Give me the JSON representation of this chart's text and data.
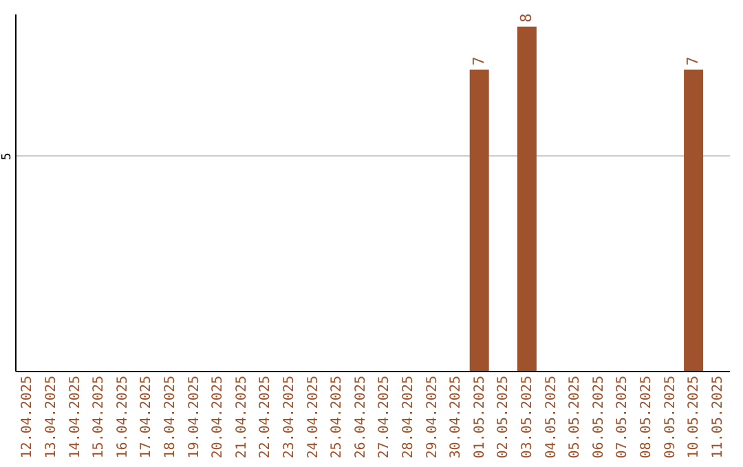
{
  "chart_data": {
    "type": "bar",
    "categories": [
      "12.04.2025",
      "13.04.2025",
      "14.04.2025",
      "15.04.2025",
      "16.04.2025",
      "17.04.2025",
      "18.04.2025",
      "19.04.2025",
      "20.04.2025",
      "21.04.2025",
      "22.04.2025",
      "23.04.2025",
      "24.04.2025",
      "25.04.2025",
      "26.04.2025",
      "27.04.2025",
      "28.04.2025",
      "29.04.2025",
      "30.04.2025",
      "01.05.2025",
      "02.05.2025",
      "03.05.2025",
      "04.05.2025",
      "05.05.2025",
      "06.05.2025",
      "07.05.2025",
      "08.05.2025",
      "09.05.2025",
      "10.05.2025",
      "11.05.2025"
    ],
    "values": [
      null,
      null,
      null,
      null,
      null,
      null,
      null,
      null,
      null,
      null,
      null,
      null,
      null,
      null,
      null,
      null,
      null,
      null,
      null,
      7,
      null,
      8,
      null,
      null,
      null,
      null,
      null,
      null,
      7,
      null
    ],
    "color": "#a0522d",
    "ylim": [
      0,
      8.3
    ],
    "yticks": [
      5
    ],
    "grid": "y",
    "data_labels": true
  }
}
